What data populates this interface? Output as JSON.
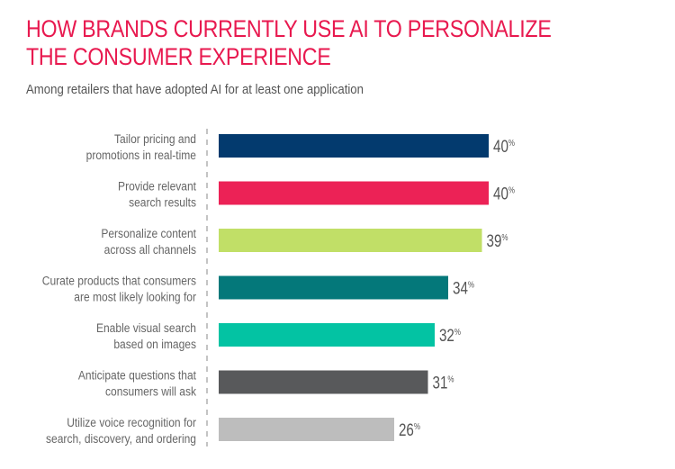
{
  "chart_data": {
    "type": "bar",
    "orientation": "horizontal",
    "title": "HOW BRANDS CURRENTLY USE AI TO PERSONALIZE THE CONSUMER EXPERIENCE",
    "title_lines": [
      "HOW BRANDS CURRENTLY USE AI TO PERSONALIZE",
      "THE CONSUMER EXPERIENCE"
    ],
    "subtitle": "Among retailers that have adopted AI for at least one application",
    "xlabel": "",
    "ylabel": "",
    "xlim": [
      0,
      40
    ],
    "grid": false,
    "value_suffix": "%",
    "categories": [
      [
        "Tailor pricing and",
        "promotions in real-time"
      ],
      [
        "Provide relevant",
        "search results"
      ],
      [
        "Personalize content",
        "across all channels"
      ],
      [
        "Curate products that consumers",
        "are most likely looking for"
      ],
      [
        "Enable visual search",
        "based on images"
      ],
      [
        "Anticipate questions that",
        "consumers will ask"
      ],
      [
        "Utilize voice recognition for",
        "search, discovery, and ordering"
      ]
    ],
    "values": [
      40,
      40,
      39,
      34,
      32,
      31,
      26
    ],
    "colors": [
      "#033a6e",
      "#ec2256",
      "#c1df67",
      "#04787a",
      "#03c3a3",
      "#58595b",
      "#bdbdbd"
    ]
  }
}
